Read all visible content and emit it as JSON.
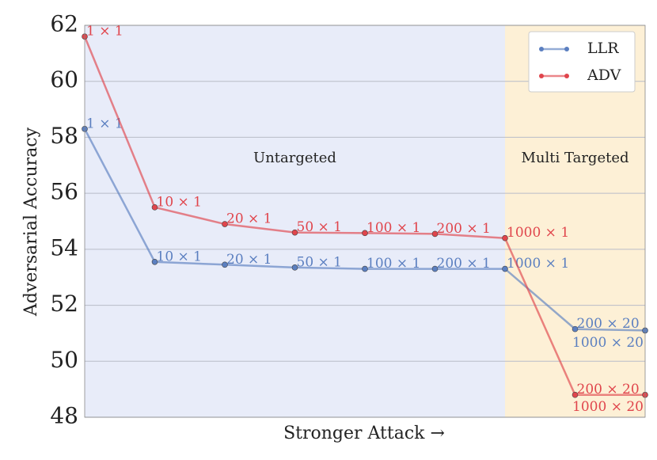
{
  "chart_data": {
    "type": "line",
    "xlabel": "Stronger Attack →",
    "ylabel": "Adversarial   Accuracy",
    "categories": [
      null,
      null,
      null,
      null,
      null,
      null,
      null,
      null,
      null
    ],
    "regions": [
      {
        "label": "Untargeted",
        "from": 0,
        "to": 6,
        "color": "#e8ecf9"
      },
      {
        "label": "Multi Targeted",
        "from": 6,
        "to": 8,
        "color": "#fdf0d6"
      }
    ],
    "series": [
      {
        "name": "LLR",
        "color": "#5b7fc0",
        "values": [
          58.3,
          53.55,
          53.45,
          53.35,
          53.3,
          53.3,
          53.3,
          51.15,
          51.1
        ],
        "labels": [
          "1 × 1",
          "10 × 1",
          "20 × 1",
          "50 × 1",
          "100 × 1",
          "200 × 1",
          "1000 × 1",
          "200 × 20",
          "1000 × 20"
        ]
      },
      {
        "name": "ADV",
        "color": "#e0454c",
        "values": [
          61.6,
          55.5,
          54.9,
          54.6,
          54.58,
          54.55,
          54.4,
          48.8,
          48.8
        ],
        "labels": [
          "1 × 1",
          "10 × 1",
          "20 × 1",
          "50 × 1",
          "100 × 1",
          "200 × 1",
          "1000 × 1",
          "200 × 20",
          "1000 × 20"
        ]
      }
    ],
    "ylim": [
      48,
      62
    ],
    "yticks": [
      48,
      50,
      52,
      54,
      56,
      58,
      60,
      62
    ],
    "grid": true,
    "legend": "upper right"
  }
}
